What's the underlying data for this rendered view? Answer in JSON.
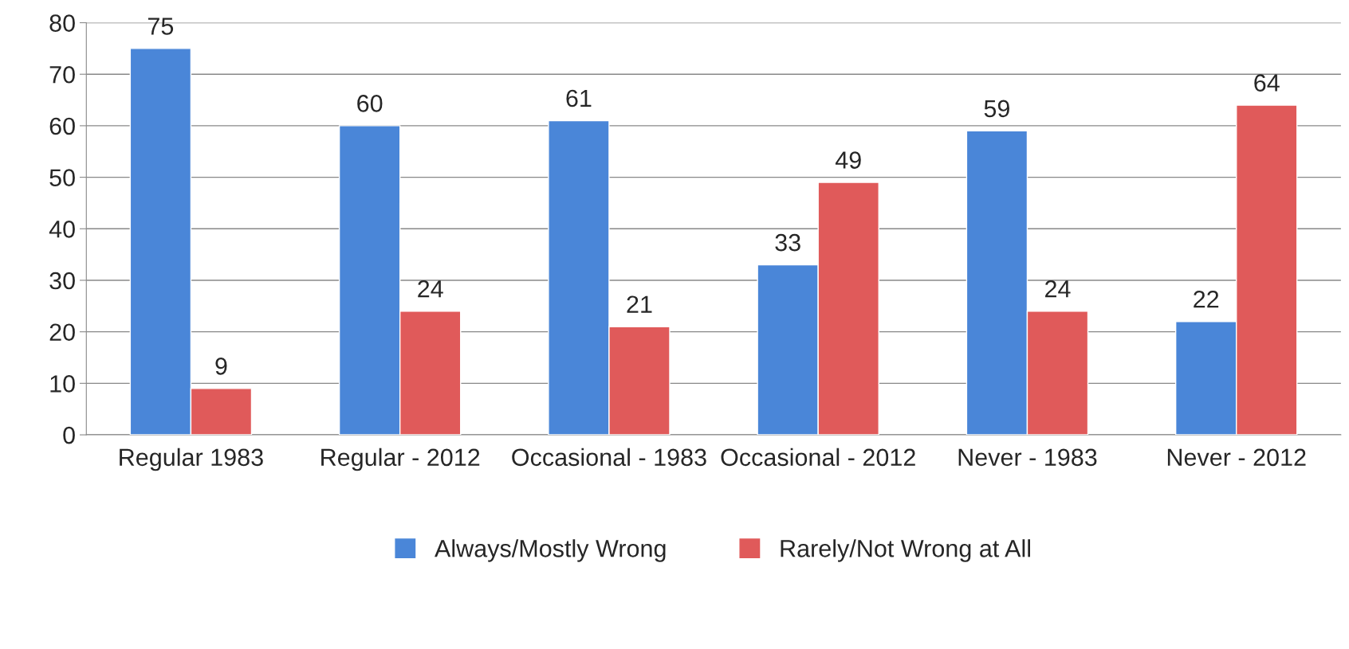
{
  "chart_data": {
    "type": "bar",
    "categories": [
      "Regular 1983",
      "Regular - 2012",
      "Occasional - 1983",
      "Occasional - 2012",
      "Never - 1983",
      "Never - 2012"
    ],
    "series": [
      {
        "name": "Always/Mostly Wrong",
        "color": "#4a86d8",
        "values": [
          75,
          60,
          61,
          33,
          59,
          22
        ]
      },
      {
        "name": "Rarely/Not Wrong at All",
        "color": "#e05a5a",
        "values": [
          9,
          24,
          21,
          49,
          24,
          64
        ]
      }
    ],
    "ylim": [
      0,
      80
    ],
    "yticks": [
      0,
      10,
      20,
      30,
      40,
      50,
      60,
      70,
      80
    ],
    "grid": "y",
    "legend": "bottom",
    "data_labels": true
  }
}
